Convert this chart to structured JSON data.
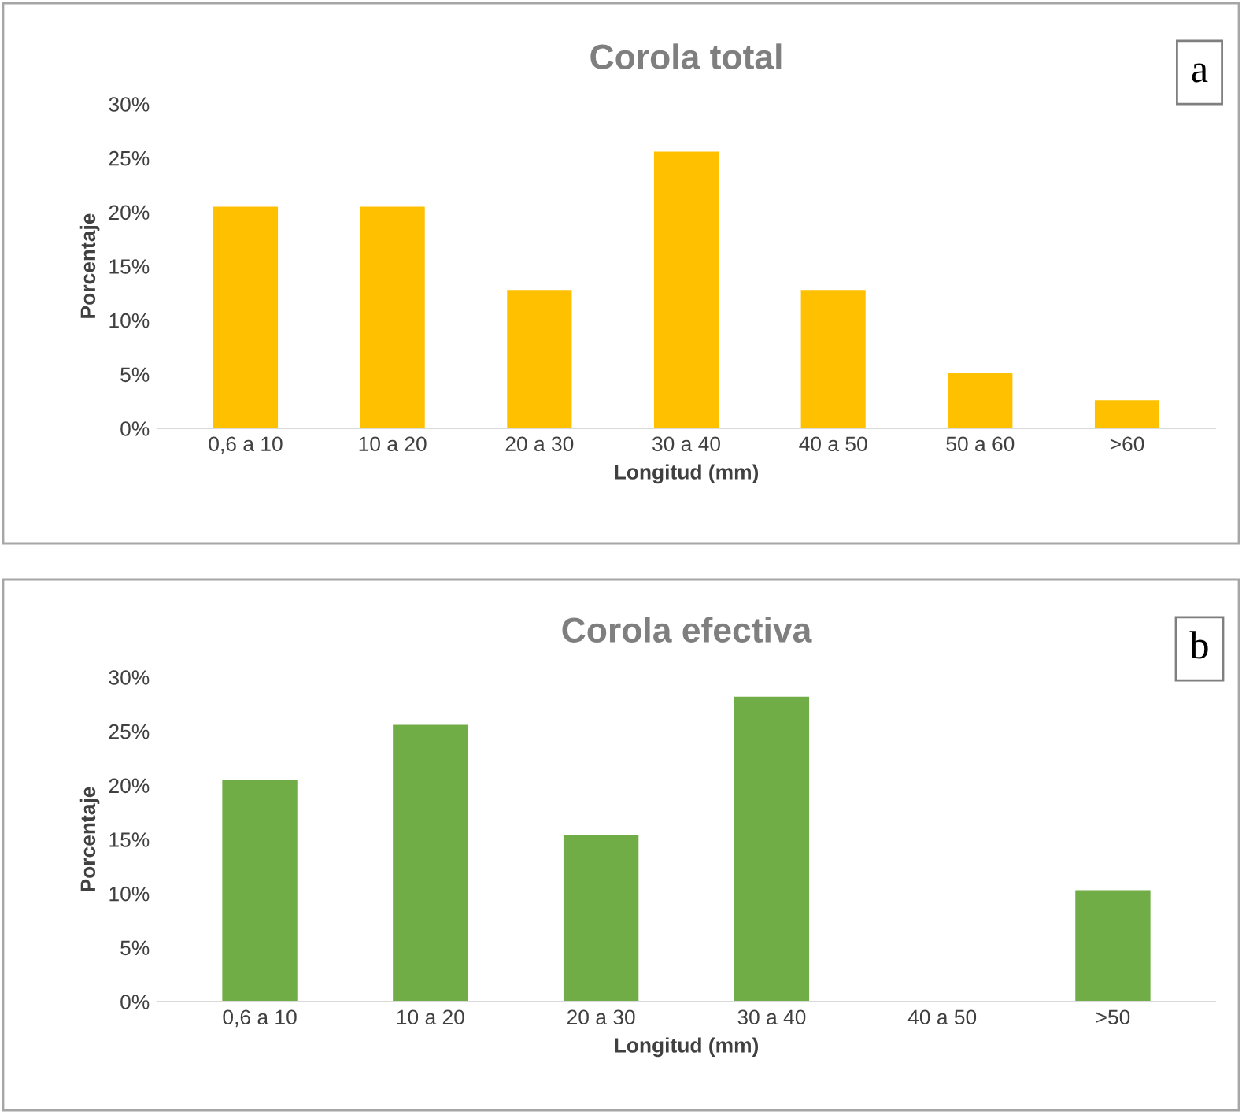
{
  "chart_data": [
    {
      "type": "bar",
      "title": "Corola total",
      "xlabel": "Longitud (mm)",
      "ylabel": "Porcentaje",
      "annotations": [
        "a"
      ],
      "categories": [
        "0,6 a 10",
        "10 a 20",
        "20 a 30",
        "30 a 40",
        "40 a 50",
        "50 a 60",
        ">60"
      ],
      "values": [
        20.5,
        20.5,
        12.8,
        25.6,
        12.8,
        5.1,
        2.6
      ],
      "color": "#ffc000",
      "ylim": [
        0,
        30
      ],
      "yticks": [
        {
          "value": 0,
          "label": "0%"
        },
        {
          "value": 5,
          "label": "5%"
        },
        {
          "value": 10,
          "label": "10%"
        },
        {
          "value": 15,
          "label": "15%"
        },
        {
          "value": 20,
          "label": "20%"
        },
        {
          "value": 25,
          "label": "25%"
        },
        {
          "value": 30,
          "label": "30%"
        }
      ],
      "grid": false,
      "legend": false
    },
    {
      "type": "bar",
      "title": "Corola efectiva",
      "xlabel": "Longitud (mm)",
      "ylabel": "Porcentaje",
      "annotations": [
        "b"
      ],
      "categories": [
        "0,6 a 10",
        "10 a 20",
        "20 a 30",
        "30 a 40",
        "40 a 50",
        ">50"
      ],
      "values": [
        20.5,
        25.6,
        15.4,
        28.2,
        0,
        10.3
      ],
      "color": "#70ad47",
      "ylim": [
        0,
        30
      ],
      "yticks": [
        {
          "value": 0,
          "label": "0%"
        },
        {
          "value": 5,
          "label": "5%"
        },
        {
          "value": 10,
          "label": "10%"
        },
        {
          "value": 15,
          "label": "15%"
        },
        {
          "value": 20,
          "label": "20%"
        },
        {
          "value": 25,
          "label": "25%"
        },
        {
          "value": 30,
          "label": "30%"
        }
      ],
      "grid": false,
      "legend": false
    }
  ]
}
